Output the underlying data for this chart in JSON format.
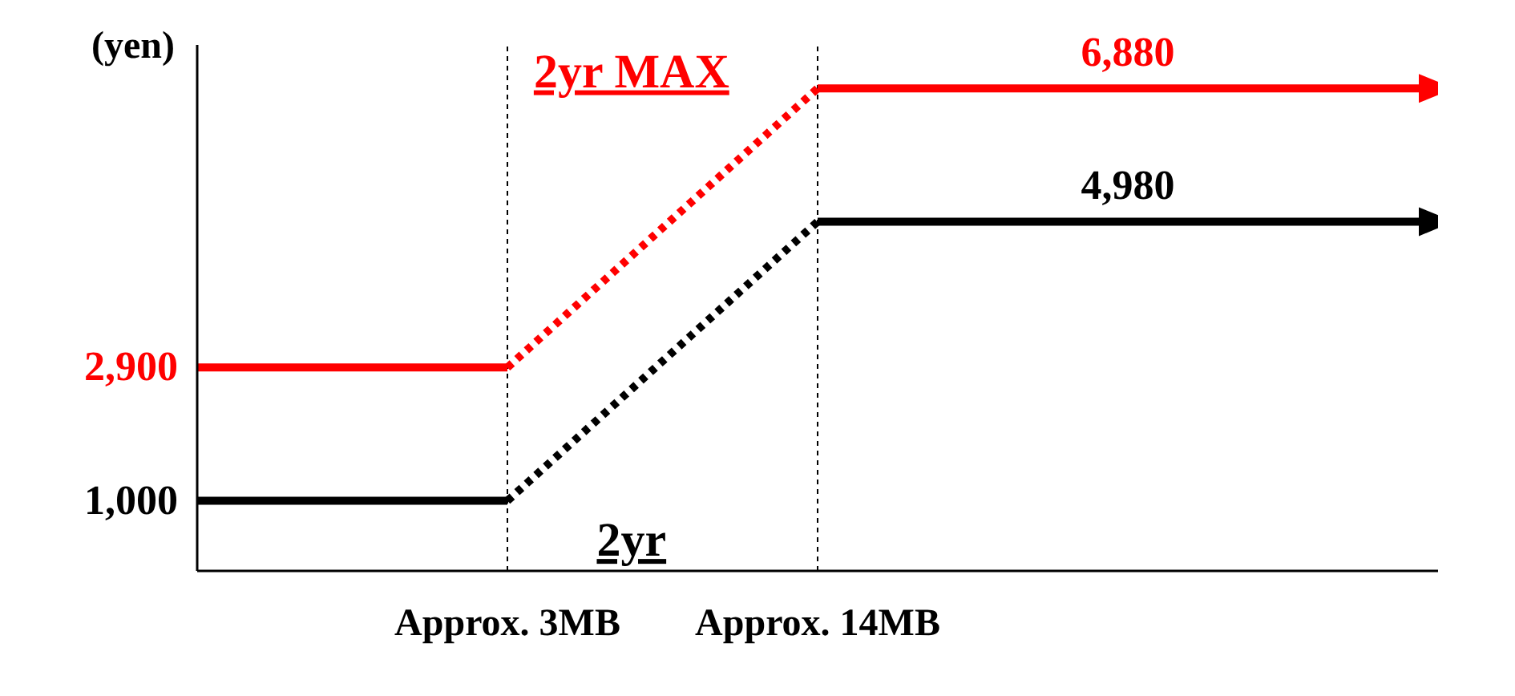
{
  "chart_data": {
    "type": "line",
    "ylabel": "(yen)",
    "categories": [
      null,
      "Approx. 3MB",
      "Approx. 14MB",
      null,
      null
    ],
    "ylim": [
      0,
      7500
    ],
    "yticks": [
      {
        "value": 1000,
        "label": "1,000"
      },
      {
        "value": 2900,
        "label": "2,900"
      }
    ],
    "ref_lines": [
      {
        "axis": "x",
        "value": "Approx. 3MB",
        "color": "#000000",
        "line_style": "dashed"
      },
      {
        "axis": "x",
        "value": "Approx. 14MB",
        "color": "#000000",
        "line_style": "dashed"
      }
    ],
    "series": [
      {
        "name": "2yr MAX",
        "color": "#ff0000",
        "line_style": "solid",
        "values": [
          2900,
          2900,
          null,
          null,
          null
        ]
      },
      {
        "color": "#ff0000",
        "line_style": "dotted",
        "values": [
          null,
          2900,
          6880,
          null,
          null
        ]
      },
      {
        "color": "#ff0000",
        "line_style": "solid",
        "values": [
          null,
          null,
          6880,
          6880,
          6880
        ],
        "value_labels": [
          null,
          null,
          null,
          "6,880",
          null
        ]
      },
      {
        "name": "2yr",
        "color": "#000000",
        "line_style": "solid",
        "values": [
          1000,
          1000,
          null,
          null,
          null
        ]
      },
      {
        "color": "#000000",
        "line_style": "dotted",
        "values": [
          null,
          1000,
          4980,
          null,
          null
        ]
      },
      {
        "color": "#000000",
        "line_style": "solid",
        "values": [
          null,
          null,
          4980,
          4980,
          4980
        ],
        "value_labels": [
          null,
          null,
          null,
          "4,980",
          null
        ]
      }
    ]
  }
}
